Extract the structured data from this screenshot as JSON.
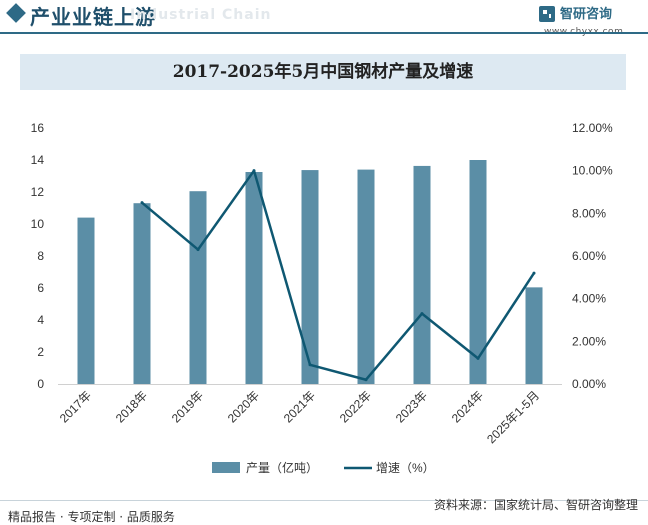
{
  "header": {
    "title": "产业业链上游",
    "watermark": "Industrial Chain",
    "brand_name": "智研咨询",
    "brand_url": "www.chyxx.com"
  },
  "chart_data": {
    "type": "bar",
    "title": "2017-2025年5月中国钢材产量及增速",
    "categories": [
      "2017年",
      "2018年",
      "2019年",
      "2020年",
      "2021年",
      "2022年",
      "2023年",
      "2024年",
      "2025年1-5月"
    ],
    "series": [
      {
        "name": "产量（亿吨）",
        "type": "bar",
        "axis": "left",
        "color": "#5b8ea6",
        "values": [
          10.4,
          11.3,
          12.05,
          13.25,
          13.37,
          13.4,
          13.63,
          14.0,
          6.04
        ]
      },
      {
        "name": "增速（%）",
        "type": "line",
        "axis": "right",
        "color": "#0f5872",
        "values": [
          null,
          8.5,
          6.3,
          10.0,
          0.9,
          0.2,
          3.3,
          1.2,
          5.2
        ]
      }
    ],
    "y_left": {
      "min": 0,
      "max": 16,
      "step": 2,
      "ticks": [
        "0",
        "2",
        "4",
        "6",
        "8",
        "10",
        "12",
        "14",
        "16"
      ]
    },
    "y_right": {
      "min": 0,
      "max": 12,
      "step": 2,
      "ticks": [
        "0.00%",
        "2.00%",
        "4.00%",
        "6.00%",
        "8.00%",
        "10.00%",
        "12.00%"
      ]
    },
    "legend": [
      "产量（亿吨）",
      "增速（%）"
    ],
    "legend_position": "bottom-center",
    "grid": false
  },
  "footer": {
    "left": "精品报告 · 专项定制 · 品质服务",
    "right": "资料来源：国家统计局、智研咨询整理"
  },
  "colors": {
    "accent": "#2e6a86",
    "title_band": "#dde9f2",
    "bar": "#5b8ea6",
    "line": "#0f5872"
  }
}
